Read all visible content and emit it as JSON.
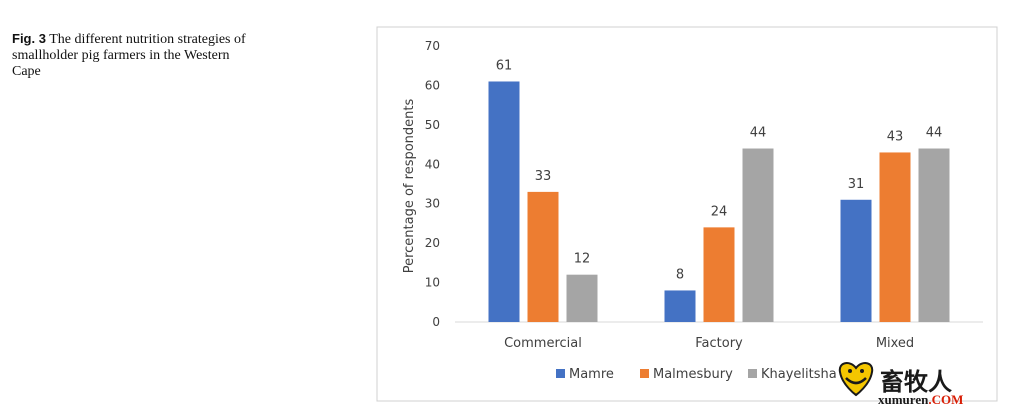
{
  "caption": {
    "fig_label": "Fig. 3",
    "text": "The different nutrition strategies of smallholder pig farmers in the Western Cape"
  },
  "chart_data": {
    "type": "bar",
    "categories": [
      "Commercial",
      "Factory",
      "Mixed"
    ],
    "series": [
      {
        "name": "Mamre",
        "color": "#4472c4",
        "values": [
          61,
          8,
          31
        ]
      },
      {
        "name": "Malmesbury",
        "color": "#ed7d31",
        "values": [
          33,
          24,
          43
        ]
      },
      {
        "name": "Khayelitsha",
        "color": "#a5a5a5",
        "values": [
          12,
          44,
          44
        ]
      }
    ],
    "ylabel": "Percentage of respondents",
    "xlabel": "",
    "ylim": [
      0,
      70
    ],
    "yticks": [
      0,
      10,
      20,
      30,
      40,
      50,
      60,
      70
    ],
    "grid": false,
    "data_labels": true,
    "legend_position": "bottom"
  },
  "watermark": {
    "cn": "畜牧人",
    "en": "xumuren",
    "com": ".COM"
  }
}
